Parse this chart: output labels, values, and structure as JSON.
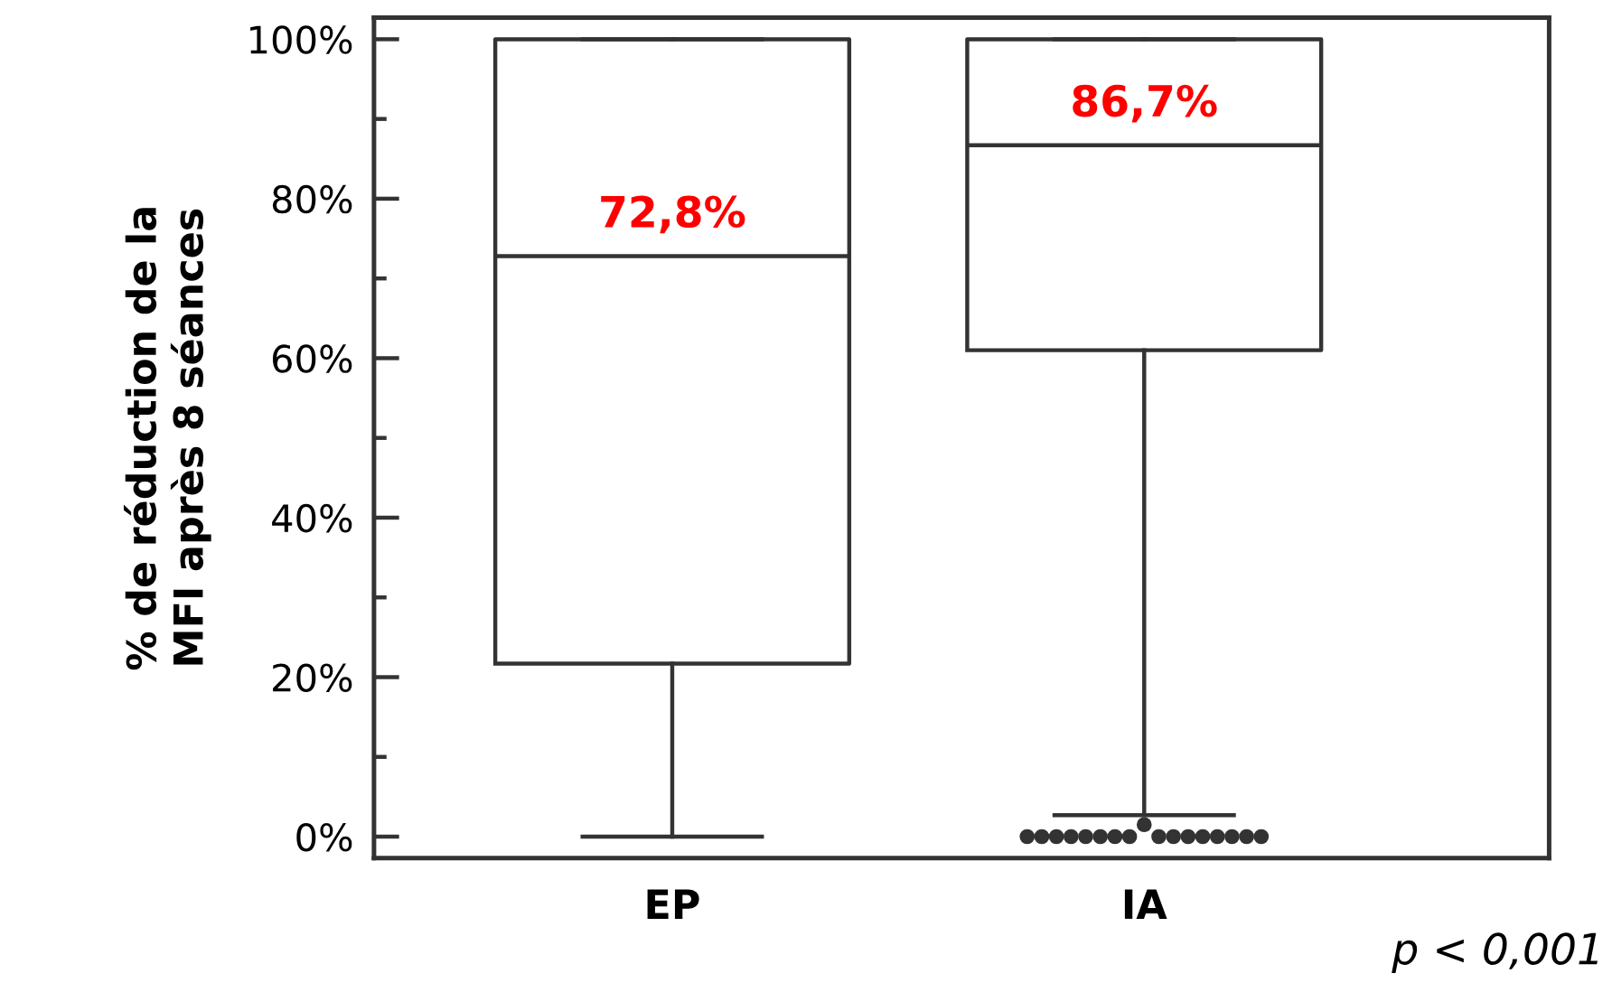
{
  "chart_data": {
    "type": "box",
    "categories": [
      "EP",
      "IA"
    ],
    "ylabel": "% de réduction de la\nMFI après 8 séances",
    "boxes": [
      {
        "low": 0,
        "q1": 21.7,
        "median": 72.8,
        "q3": 100,
        "high": 100
      },
      {
        "low": 2.7,
        "q1": 61,
        "median": 86.7,
        "q3": 100,
        "high": 100,
        "outliers": [
          0,
          0,
          0,
          0,
          0,
          0,
          0,
          0,
          1.5,
          0,
          0,
          0,
          0,
          0,
          0,
          0,
          0
        ]
      }
    ],
    "color": "#333333",
    "ylim": [
      -2.7,
      102.7
    ],
    "yticks": [
      {
        "value": 0,
        "label": "0%"
      },
      {
        "value": 10,
        "label": null
      },
      {
        "value": 20,
        "label": "20%"
      },
      {
        "value": 30,
        "label": null
      },
      {
        "value": 40,
        "label": "40%"
      },
      {
        "value": 50,
        "label": null
      },
      {
        "value": 60,
        "label": "60%"
      },
      {
        "value": 70,
        "label": null
      },
      {
        "value": 80,
        "label": "80%"
      },
      {
        "value": 90,
        "label": null
      },
      {
        "value": 100,
        "label": "100%"
      }
    ],
    "grid": false,
    "annotations": [
      {
        "text": "72,8%",
        "x": "EP",
        "y": 72.8
      },
      {
        "text": "86,7%",
        "x": "IA",
        "y": 86.7
      },
      "p < 0,001"
    ]
  }
}
